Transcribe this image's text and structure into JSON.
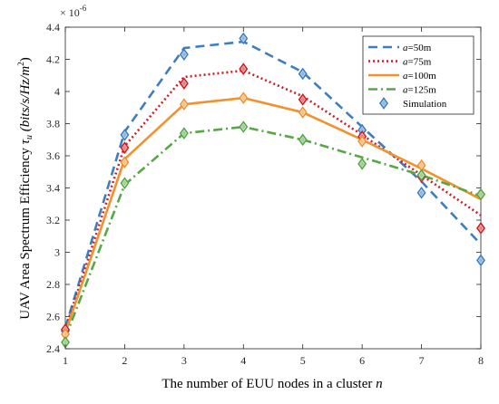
{
  "chart_data": {
    "type": "line",
    "xlabel": "The number of EUU nodes in a cluster",
    "xlabel_var": "n",
    "ylabel": "UAV Area Spectrum Efficiency",
    "ylabel_var": "τ",
    "ylabel_sub": "u",
    "ylabel_unit": "(bits/s/Hz/m",
    "ylabel_unit_sup": "2",
    "ylabel_unit_end": ")",
    "y_exponent_base": "× 10",
    "y_exponent": "-6",
    "xlim": [
      1,
      8
    ],
    "ylim": [
      2.4,
      4.4
    ],
    "x_ticks": [
      "1",
      "2",
      "3",
      "4",
      "5",
      "6",
      "7",
      "8"
    ],
    "y_ticks": [
      "2.4",
      "2.6",
      "2.8",
      "3",
      "3.2",
      "3.4",
      "3.6",
      "3.8",
      "4",
      "4.2",
      "4.4"
    ],
    "grid": false,
    "legend_position": "top-right",
    "x": [
      1,
      2,
      3,
      4,
      5,
      6,
      7,
      8
    ],
    "series": [
      {
        "name_var": "a",
        "name_rest": "=50m",
        "color": "#3d7ec1",
        "dash": "10,6",
        "values": [
          2.53,
          3.75,
          4.27,
          4.31,
          4.12,
          3.78,
          3.44,
          3.05
        ]
      },
      {
        "name_var": "a",
        "name_rest": "=75m",
        "color": "#cc1f26",
        "dash": "2,3",
        "values": [
          2.52,
          3.66,
          4.09,
          4.13,
          3.97,
          3.73,
          3.48,
          3.23
        ]
      },
      {
        "name_var": "a",
        "name_rest": "=100m",
        "color": "#f0922d",
        "dash": "",
        "values": [
          2.5,
          3.58,
          3.92,
          3.96,
          3.87,
          3.7,
          3.52,
          3.33
        ]
      },
      {
        "name_var": "a",
        "name_rest": "=125m",
        "color": "#56a846",
        "dash": "10,4,2,4",
        "values": [
          2.47,
          3.42,
          3.74,
          3.78,
          3.7,
          3.59,
          3.48,
          3.35
        ]
      }
    ],
    "simulation_label": "Simulation",
    "simulation_color": "#3d7ec1",
    "simulation": [
      {
        "series": 0,
        "values": [
          2.51,
          3.73,
          4.23,
          4.33,
          4.11,
          3.76,
          3.37,
          2.95
        ]
      },
      {
        "series": 1,
        "values": [
          2.52,
          3.65,
          4.05,
          4.14,
          3.95,
          3.72,
          3.47,
          3.15
        ]
      },
      {
        "series": 2,
        "values": [
          2.49,
          3.56,
          3.92,
          3.96,
          3.87,
          3.69,
          3.54,
          3.36
        ]
      },
      {
        "series": 3,
        "values": [
          2.44,
          3.43,
          3.74,
          3.78,
          3.7,
          3.55,
          3.48,
          3.36
        ]
      }
    ]
  }
}
